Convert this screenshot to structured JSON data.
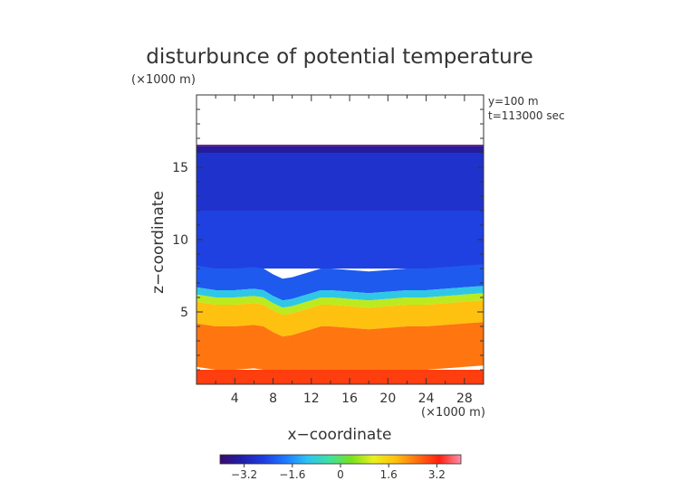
{
  "chart_data": {
    "type": "heatmap",
    "title": "disturbunce of potential temperature",
    "unit_note": "(×1000 m)",
    "xlabel": "x−coordinate",
    "ylabel": "z−coordinate",
    "x_unit_note": "(×1000 m)",
    "annotations": [
      "y=100 m",
      "t=113000 sec"
    ],
    "xlim": [
      0,
      30
    ],
    "ylim": [
      0,
      20
    ],
    "x_ticks": [
      4,
      8,
      12,
      16,
      20,
      24,
      28
    ],
    "x_tick_labels": [
      "4",
      "8",
      "12",
      "16",
      "20",
      "24",
      "28"
    ],
    "y_ticks": [
      5,
      10,
      15
    ],
    "y_tick_labels": [
      "5",
      "10",
      "15"
    ],
    "data_top_z": 16.5,
    "value_range": [
      -4,
      4
    ],
    "colorbar": {
      "ticks": [
        -3.2,
        -1.6,
        0,
        1.6,
        3.2
      ],
      "tick_labels": [
        "−3.2",
        "−1.6",
        "0",
        "1.6",
        "3.2"
      ],
      "colors": [
        "#3a0a6e",
        "#2020a8",
        "#1f3de0",
        "#1e7bff",
        "#2ec3f0",
        "#3fe0a0",
        "#7ae020",
        "#e8f020",
        "#ffc010",
        "#ff7010",
        "#ff2010",
        "#ff8fa8"
      ]
    },
    "interface_profile": {
      "x": [
        0,
        2,
        4,
        6,
        7,
        8,
        9,
        10,
        11,
        12,
        13,
        14,
        16,
        18,
        20,
        22,
        24,
        26,
        28,
        30
      ],
      "z": [
        5.8,
        5.6,
        5.6,
        5.7,
        5.6,
        5.2,
        4.9,
        5.0,
        5.2,
        5.4,
        5.6,
        5.6,
        5.5,
        5.4,
        5.5,
        5.6,
        5.6,
        5.7,
        5.8,
        5.9
      ]
    },
    "layers": [
      {
        "z_min": 16.0,
        "z_max": 16.5,
        "value": -3.4
      },
      {
        "z_min": 12.0,
        "z_max": 16.0,
        "value": -2.8
      },
      {
        "z_min": 8.0,
        "z_max": 12.0,
        "value": -2.5
      },
      {
        "z_min": 6.5,
        "z_max": 8.0,
        "value": -2.2
      },
      {
        "z_min": 6.0,
        "z_max": 6.5,
        "value": -1.0
      },
      {
        "z_min": 5.5,
        "z_max": 6.0,
        "value": 0.8
      },
      {
        "z_min": 4.0,
        "z_max": 5.5,
        "value": 1.8
      },
      {
        "z_min": 1.0,
        "z_max": 4.0,
        "value": 2.5
      },
      {
        "z_min": 0.0,
        "z_max": 1.0,
        "value": 3.0
      }
    ]
  }
}
